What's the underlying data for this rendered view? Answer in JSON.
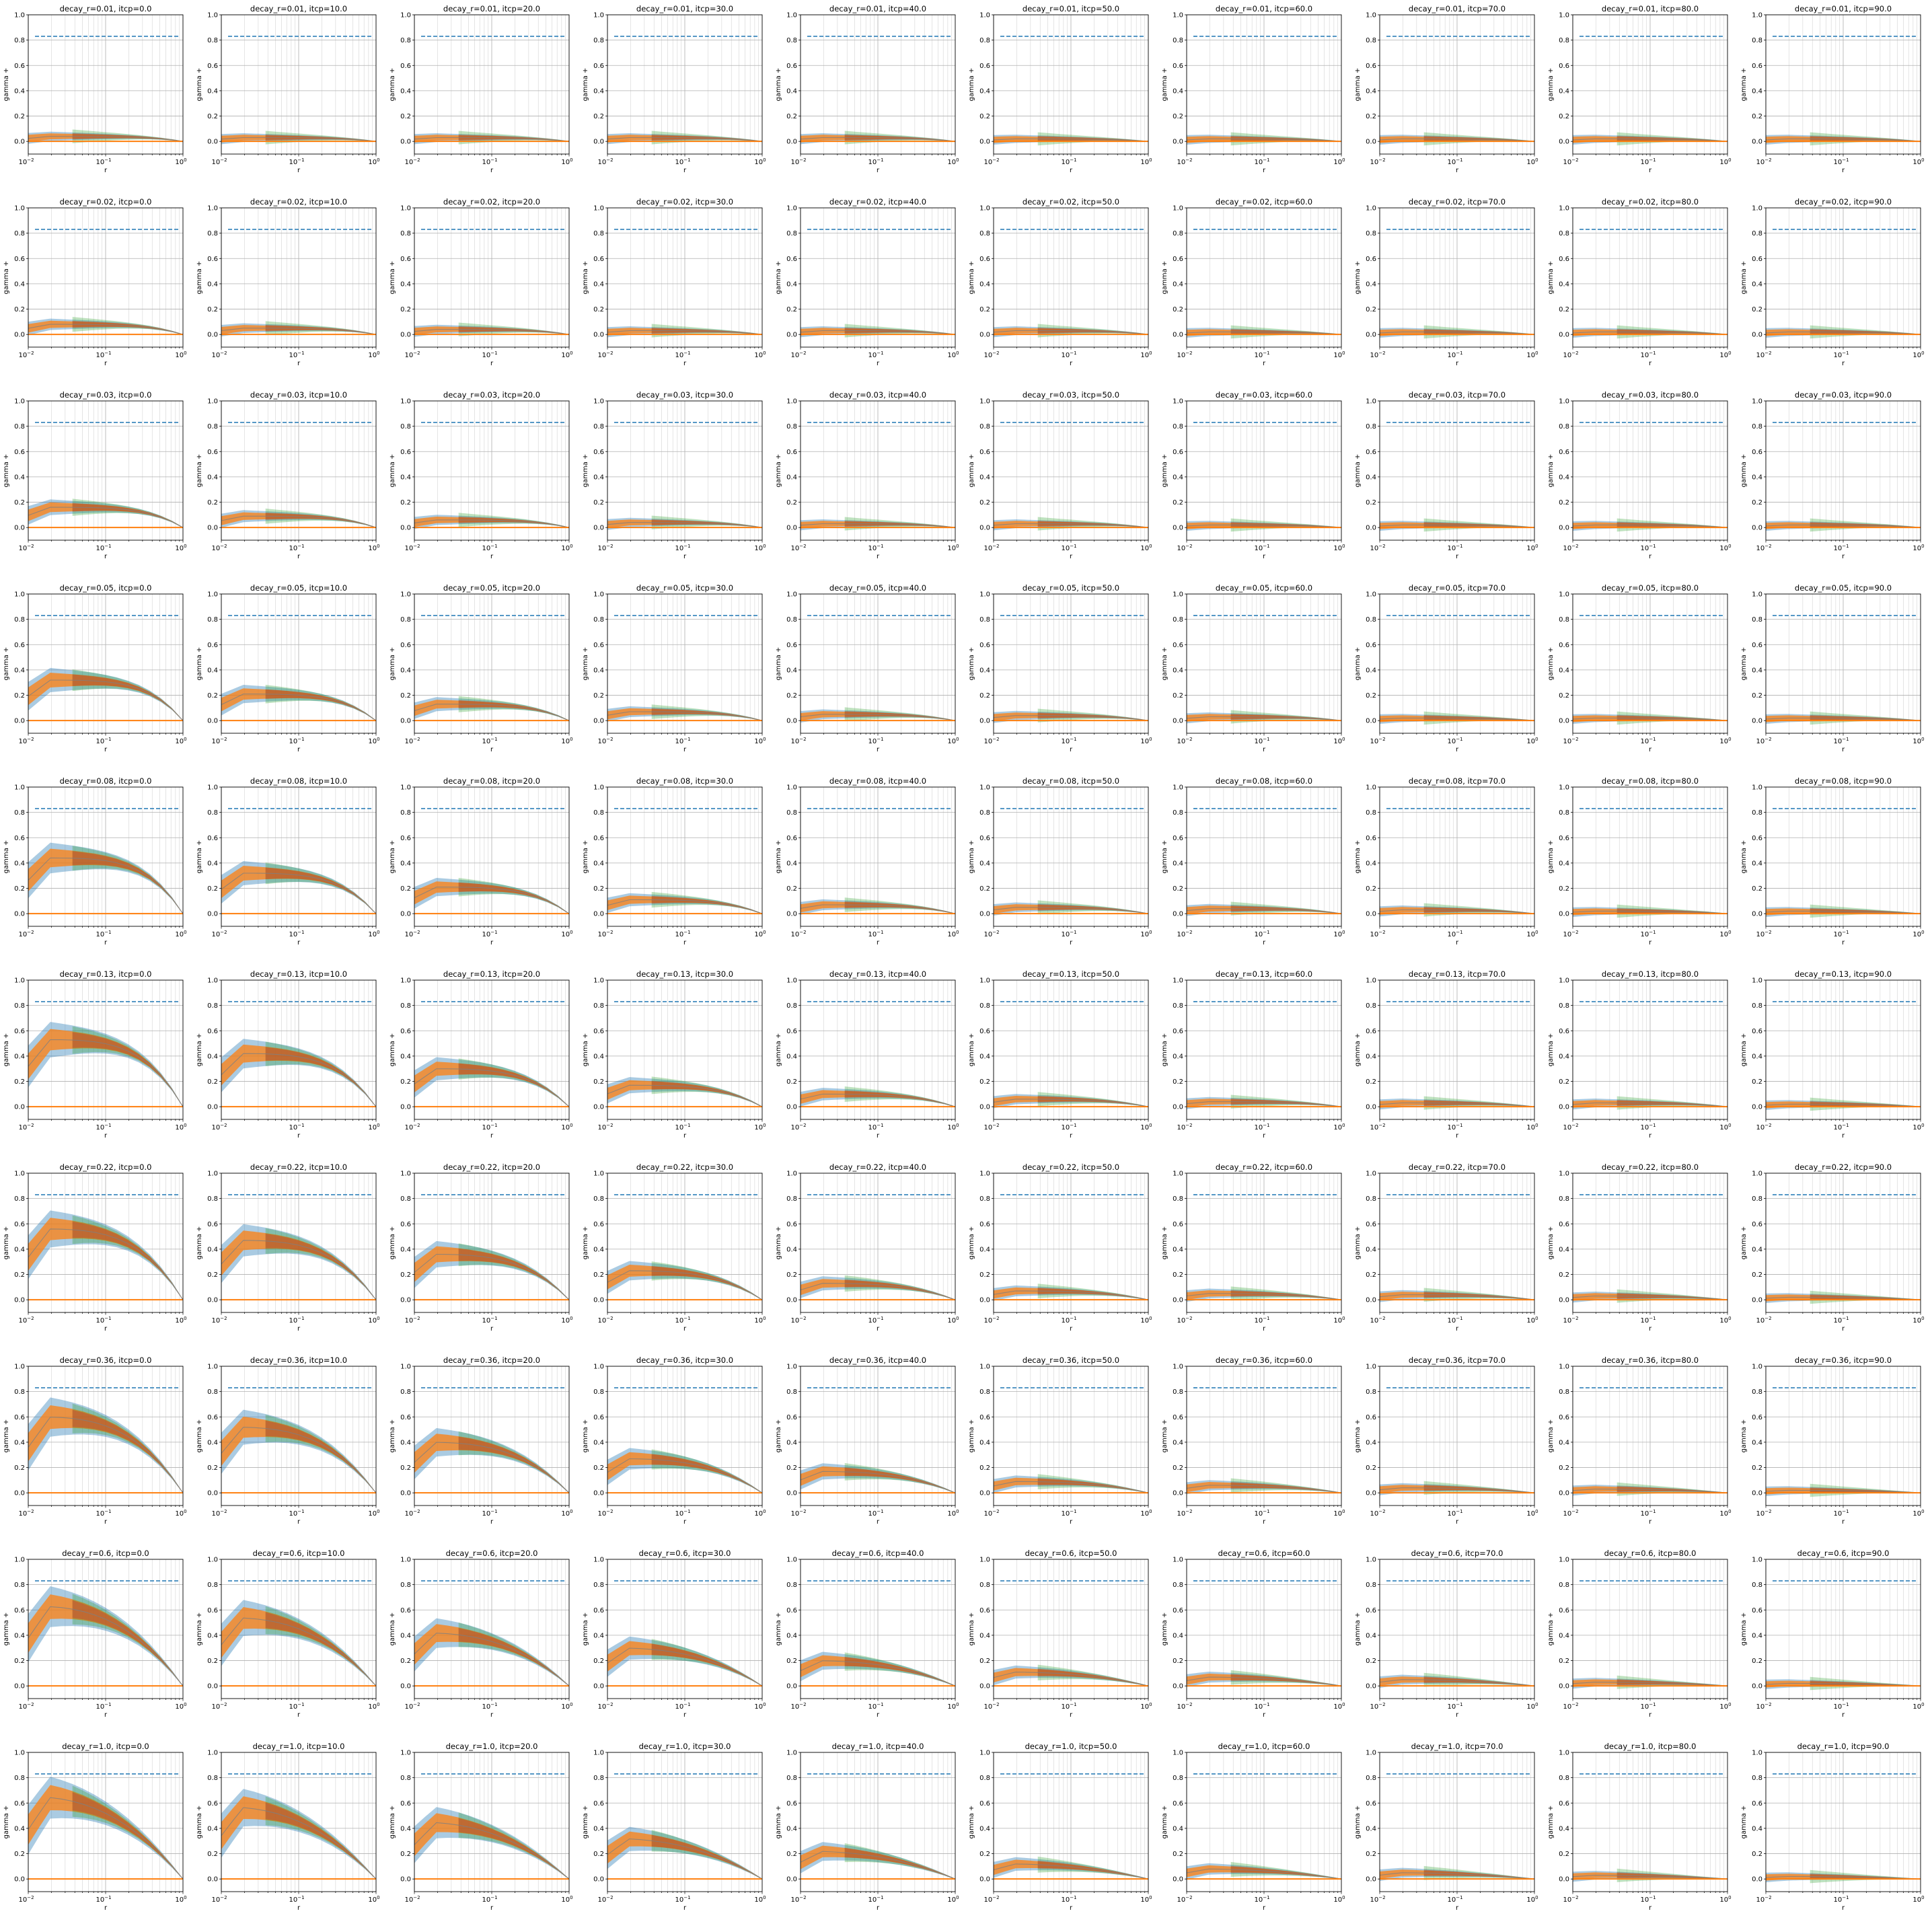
{
  "figure": {
    "rows": 10,
    "cols": 10,
    "xlabel": "r",
    "ylabel": "gamma +",
    "xscale": "log",
    "xlim": [
      0.01,
      1.0
    ],
    "ylim": [
      -0.1,
      1.0
    ],
    "yticks": [
      0.0,
      0.2,
      0.4,
      0.6,
      0.8,
      1.0
    ],
    "ytick_labels": [
      "0.0",
      "0.2",
      "0.4",
      "0.6",
      "0.8",
      "1.0"
    ],
    "xticks": [
      0.01,
      0.1,
      1.0
    ],
    "xtick_bases": [
      "10",
      "10",
      "10"
    ],
    "xtick_exps": [
      "−2",
      "−1",
      "0"
    ],
    "grid": true,
    "colors": {
      "dashed_ref": "#1f77b4",
      "baseline": "#ff7f0e",
      "band_blue": "#1f77b4",
      "band_orange": "#ff7f0e",
      "band_green": "#2ca02c",
      "band_red": "#d62728",
      "mean_line": "#7f7f7f",
      "grid": "#b0b0b0"
    }
  },
  "chart_data": {
    "type": "line",
    "decay_r_values": [
      "0.01",
      "0.02",
      "0.03",
      "0.05",
      "0.08",
      "0.13",
      "0.22",
      "0.36",
      "0.6",
      "1.0"
    ],
    "itcp_values": [
      "0.0",
      "10.0",
      "20.0",
      "30.0",
      "40.0",
      "50.0",
      "60.0",
      "70.0",
      "80.0",
      "90.0"
    ],
    "titles": [
      [
        "decay_r=0.01, itcp=0.0",
        "decay_r=0.01, itcp=10.0",
        "decay_r=0.01, itcp=20.0",
        "decay_r=0.01, itcp=30.0",
        "decay_r=0.01, itcp=40.0",
        "decay_r=0.01, itcp=50.0",
        "decay_r=0.01, itcp=60.0",
        "decay_r=0.01, itcp=70.0",
        "decay_r=0.01, itcp=80.0",
        "decay_r=0.01, itcp=90.0"
      ],
      [
        "decay_r=0.02, itcp=0.0",
        "decay_r=0.02, itcp=10.0",
        "decay_r=0.02, itcp=20.0",
        "decay_r=0.02, itcp=30.0",
        "decay_r=0.02, itcp=40.0",
        "decay_r=0.02, itcp=50.0",
        "decay_r=0.02, itcp=60.0",
        "decay_r=0.02, itcp=70.0",
        "decay_r=0.02, itcp=80.0",
        "decay_r=0.02, itcp=90.0"
      ],
      [
        "decay_r=0.03, itcp=0.0",
        "decay_r=0.03, itcp=10.0",
        "decay_r=0.03, itcp=20.0",
        "decay_r=0.03, itcp=30.0",
        "decay_r=0.03, itcp=40.0",
        "decay_r=0.03, itcp=50.0",
        "decay_r=0.03, itcp=60.0",
        "decay_r=0.03, itcp=70.0",
        "decay_r=0.03, itcp=80.0",
        "decay_r=0.03, itcp=90.0"
      ],
      [
        "decay_r=0.05, itcp=0.0",
        "decay_r=0.05, itcp=10.0",
        "decay_r=0.05, itcp=20.0",
        "decay_r=0.05, itcp=30.0",
        "decay_r=0.05, itcp=40.0",
        "decay_r=0.05, itcp=50.0",
        "decay_r=0.05, itcp=60.0",
        "decay_r=0.05, itcp=70.0",
        "decay_r=0.05, itcp=80.0",
        "decay_r=0.05, itcp=90.0"
      ],
      [
        "decay_r=0.08, itcp=0.0",
        "decay_r=0.08, itcp=10.0",
        "decay_r=0.08, itcp=20.0",
        "decay_r=0.08, itcp=30.0",
        "decay_r=0.08, itcp=40.0",
        "decay_r=0.08, itcp=50.0",
        "decay_r=0.08, itcp=60.0",
        "decay_r=0.08, itcp=70.0",
        "decay_r=0.08, itcp=80.0",
        "decay_r=0.08, itcp=90.0"
      ],
      [
        "decay_r=0.13, itcp=0.0",
        "decay_r=0.13, itcp=10.0",
        "decay_r=0.13, itcp=20.0",
        "decay_r=0.13, itcp=30.0",
        "decay_r=0.13, itcp=40.0",
        "decay_r=0.13, itcp=50.0",
        "decay_r=0.13, itcp=60.0",
        "decay_r=0.13, itcp=70.0",
        "decay_r=0.13, itcp=80.0",
        "decay_r=0.13, itcp=90.0"
      ],
      [
        "decay_r=0.22, itcp=0.0",
        "decay_r=0.22, itcp=10.0",
        "decay_r=0.22, itcp=20.0",
        "decay_r=0.22, itcp=30.0",
        "decay_r=0.22, itcp=40.0",
        "decay_r=0.22, itcp=50.0",
        "decay_r=0.22, itcp=60.0",
        "decay_r=0.22, itcp=70.0",
        "decay_r=0.22, itcp=80.0",
        "decay_r=0.22, itcp=90.0"
      ],
      [
        "decay_r=0.36, itcp=0.0",
        "decay_r=0.36, itcp=10.0",
        "decay_r=0.36, itcp=20.0",
        "decay_r=0.36, itcp=30.0",
        "decay_r=0.36, itcp=40.0",
        "decay_r=0.36, itcp=50.0",
        "decay_r=0.36, itcp=60.0",
        "decay_r=0.36, itcp=70.0",
        "decay_r=0.36, itcp=80.0",
        "decay_r=0.36, itcp=90.0"
      ],
      [
        "decay_r=0.6, itcp=0.0",
        "decay_r=0.6, itcp=10.0",
        "decay_r=0.6, itcp=20.0",
        "decay_r=0.6, itcp=30.0",
        "decay_r=0.6, itcp=40.0",
        "decay_r=0.6, itcp=50.0",
        "decay_r=0.6, itcp=60.0",
        "decay_r=0.6, itcp=70.0",
        "decay_r=0.6, itcp=80.0",
        "decay_r=0.6, itcp=90.0"
      ],
      [
        "decay_r=1.0, itcp=0.0",
        "decay_r=1.0, itcp=10.0",
        "decay_r=1.0, itcp=20.0",
        "decay_r=1.0, itcp=30.0",
        "decay_r=1.0, itcp=40.0",
        "decay_r=1.0, itcp=50.0",
        "decay_r=1.0, itcp=60.0",
        "decay_r=1.0, itcp=70.0",
        "decay_r=1.0, itcp=80.0",
        "decay_r=1.0, itcp=90.0"
      ]
    ],
    "x": [
      0.01,
      0.0139,
      0.0193,
      0.0268,
      0.0373,
      0.0518,
      0.072,
      0.1,
      0.139,
      0.193,
      0.268,
      0.373,
      0.518,
      0.72,
      1.0
    ],
    "dashed_reference_y": 0.83,
    "baseline_y": 0.0,
    "peak_gamma": [
      [
        0.04,
        0.03,
        0.03,
        0.03,
        0.03,
        0.02,
        0.02,
        0.02,
        0.02,
        0.02
      ],
      [
        0.08,
        0.05,
        0.04,
        0.03,
        0.03,
        0.03,
        0.02,
        0.02,
        0.02,
        0.02
      ],
      [
        0.16,
        0.09,
        0.06,
        0.04,
        0.03,
        0.03,
        0.02,
        0.02,
        0.02,
        0.02
      ],
      [
        0.32,
        0.21,
        0.13,
        0.07,
        0.05,
        0.04,
        0.03,
        0.02,
        0.02,
        0.02
      ],
      [
        0.44,
        0.32,
        0.21,
        0.11,
        0.07,
        0.05,
        0.04,
        0.03,
        0.02,
        0.02
      ],
      [
        0.53,
        0.42,
        0.3,
        0.17,
        0.1,
        0.06,
        0.04,
        0.03,
        0.03,
        0.02
      ],
      [
        0.56,
        0.47,
        0.36,
        0.23,
        0.13,
        0.07,
        0.05,
        0.04,
        0.03,
        0.02
      ],
      [
        0.6,
        0.52,
        0.4,
        0.27,
        0.17,
        0.09,
        0.06,
        0.04,
        0.03,
        0.02
      ],
      [
        0.63,
        0.54,
        0.42,
        0.3,
        0.2,
        0.11,
        0.07,
        0.05,
        0.03,
        0.02
      ],
      [
        0.65,
        0.57,
        0.45,
        0.32,
        0.22,
        0.12,
        0.08,
        0.05,
        0.03,
        0.02
      ]
    ]
  }
}
